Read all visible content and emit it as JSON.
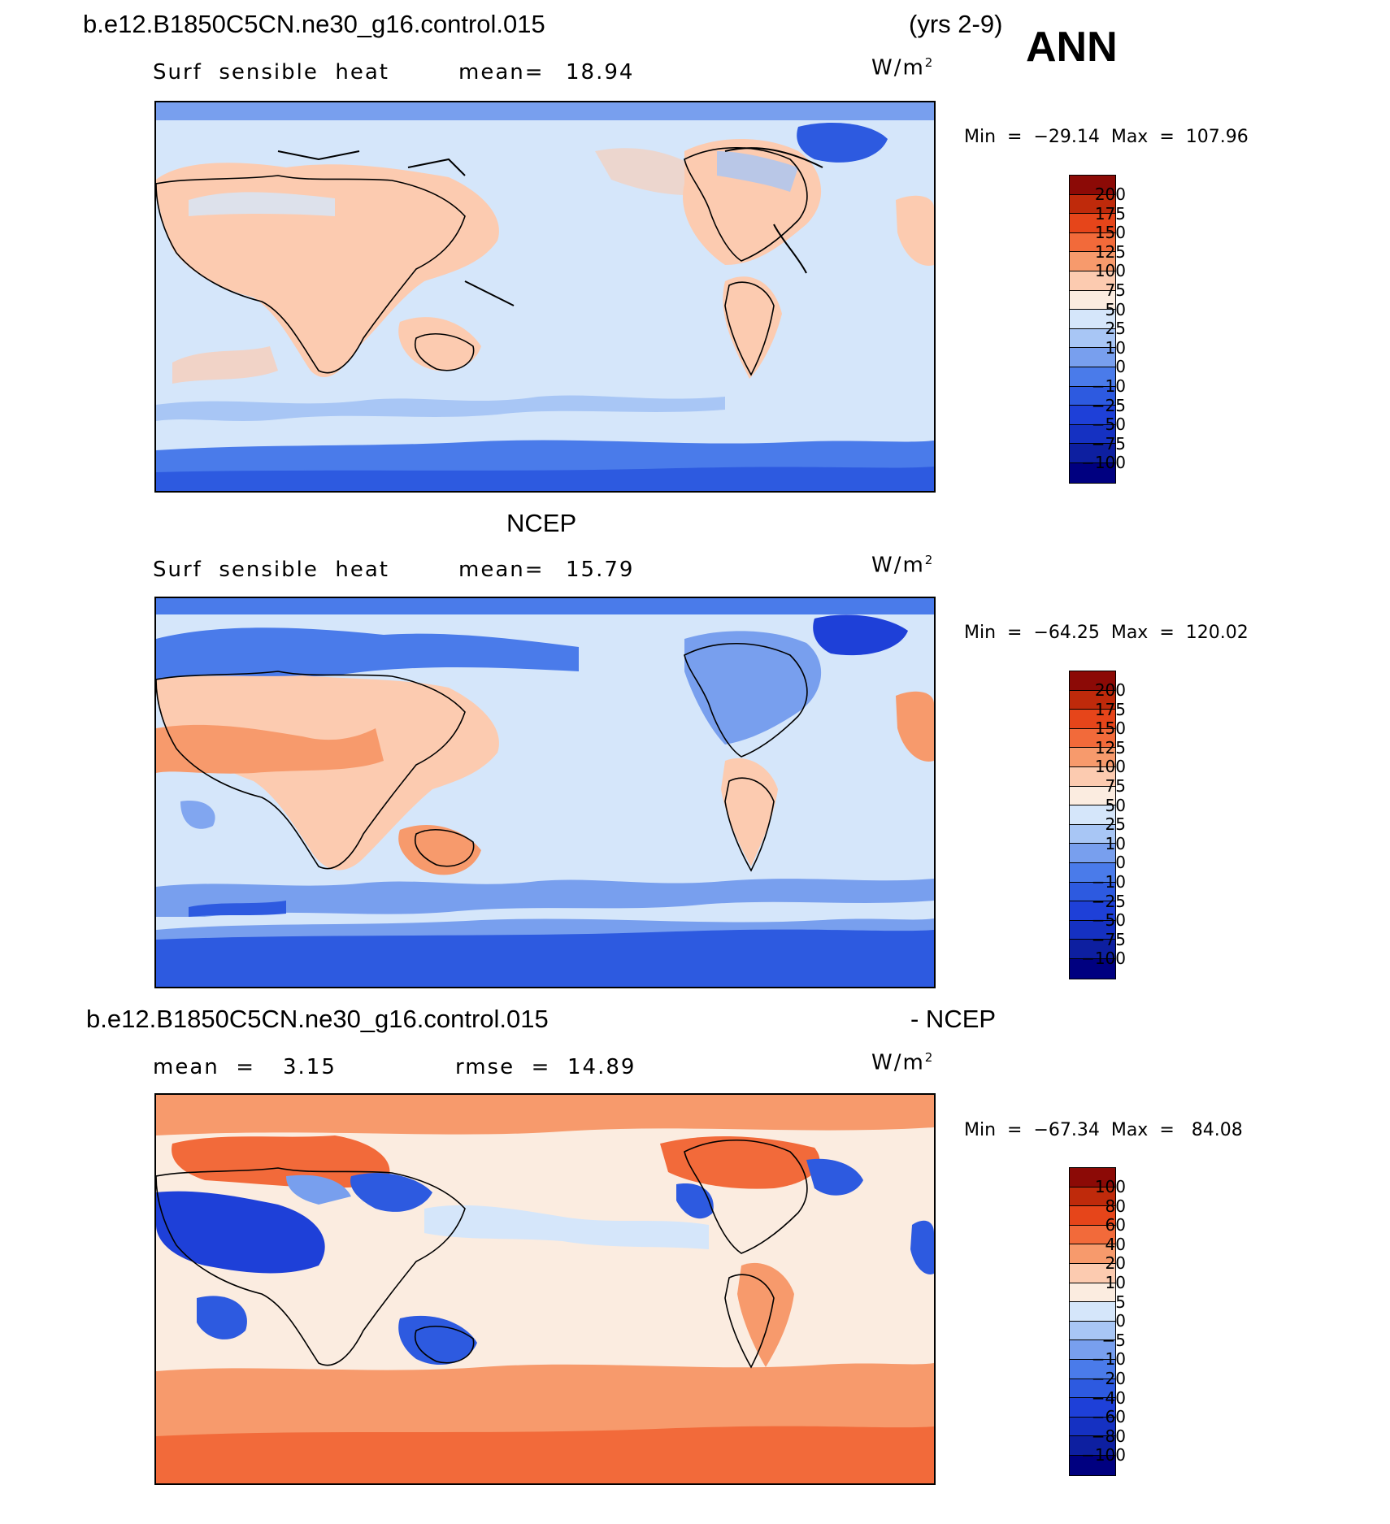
{
  "header": {
    "case_name": "b.e12.B1850C5CN.ne30_g16.control.015",
    "years": "(yrs 2-9)",
    "season": "ANN"
  },
  "panels": [
    {
      "title": "",
      "variable": "Surf  sensible  heat",
      "stat_label": "mean=",
      "stat_value": "18.94",
      "units": "W/m",
      "units_sup": "2",
      "min_max": "Min  =  −29.14  Max  =  107.96",
      "colorbar_colors": [
        "#000080",
        "#0d1fa0",
        "#1531c2",
        "#1e40d8",
        "#2d5ae0",
        "#4a7bea",
        "#789fee",
        "#a8c6f5",
        "#d5e6fa",
        "#fbece0",
        "#fccbb0",
        "#f79a6c",
        "#f26a3a",
        "#e6451a",
        "#bf2a0b",
        "#8c0a06"
      ],
      "colorbar_ticks": [
        "200",
        "175",
        "150",
        "125",
        "100",
        "75",
        "50",
        "25",
        "10",
        "0",
        "−10",
        "−25",
        "−50",
        "−75",
        "−100"
      ]
    },
    {
      "title": "NCEP",
      "variable": "Surf  sensible  heat",
      "stat_label": "mean=",
      "stat_value": "15.79",
      "units": "W/m",
      "units_sup": "2",
      "min_max": "Min  =  −64.25  Max  =  120.02",
      "colorbar_colors": [
        "#000080",
        "#0d1fa0",
        "#1531c2",
        "#1e40d8",
        "#2d5ae0",
        "#4a7bea",
        "#789fee",
        "#a8c6f5",
        "#d5e6fa",
        "#fbece0",
        "#fccbb0",
        "#f79a6c",
        "#f26a3a",
        "#e6451a",
        "#bf2a0b",
        "#8c0a06"
      ],
      "colorbar_ticks": [
        "200",
        "175",
        "150",
        "125",
        "100",
        "75",
        "50",
        "25",
        "10",
        "0",
        "−10",
        "−25",
        "−50",
        "−75",
        "−100"
      ]
    },
    {
      "title_left": "b.e12.B1850C5CN.ne30_g16.control.015",
      "title_right": "- NCEP",
      "stat1_label": "mean  =",
      "stat1_value": "3.15",
      "stat2_label": "rmse  =",
      "stat2_value": "14.89",
      "units": "W/m",
      "units_sup": "2",
      "min_max": "Min  =  −67.34  Max  =   84.08",
      "colorbar_colors": [
        "#000080",
        "#0d1fa0",
        "#1531c2",
        "#1e40d8",
        "#2d5ae0",
        "#4a7bea",
        "#789fee",
        "#a8c6f5",
        "#d5e6fa",
        "#fbece0",
        "#fccbb0",
        "#f79a6c",
        "#f26a3a",
        "#e6451a",
        "#bf2a0b",
        "#8c0a06"
      ],
      "colorbar_ticks": [
        "100",
        "80",
        "60",
        "40",
        "20",
        "10",
        "5",
        "0",
        "−5",
        "−10",
        "−20",
        "−40",
        "−60",
        "−80",
        "−100"
      ]
    }
  ],
  "colors": {
    "ocean_light": "#d5e6fa",
    "polar_blue": "#4a7bea",
    "land_warm": "#fccbb0",
    "diff_warm": "#f79a6c"
  }
}
